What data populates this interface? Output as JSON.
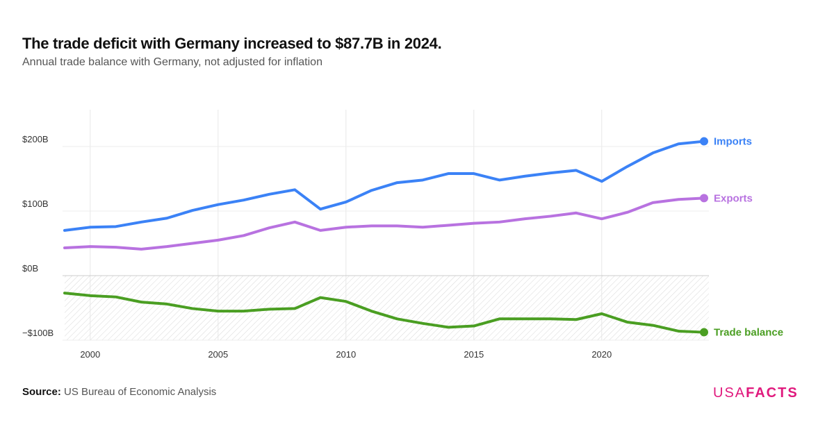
{
  "header": {
    "title": "The trade deficit with Germany increased to $87.7B in 2024.",
    "subtitle": "Annual trade balance with Germany, not adjusted for inflation"
  },
  "footer": {
    "source_label": "Source:",
    "source_text": "US Bureau of Economic Analysis",
    "logo_light": "USA",
    "logo_bold": "FACTS"
  },
  "chart_data": {
    "type": "line",
    "title": "The trade deficit with Germany increased to $87.7B in 2024.",
    "xlim": [
      1999,
      2024
    ],
    "ylim": [
      -100,
      250
    ],
    "x_ticks": [
      2000,
      2005,
      2010,
      2015,
      2020
    ],
    "y_ticks": [
      {
        "value": 200,
        "label": "$200B"
      },
      {
        "value": 100,
        "label": "$100B"
      },
      {
        "value": 0,
        "label": "$0B"
      },
      {
        "value": -100,
        "label": "−$100B"
      }
    ],
    "grid": true,
    "legend": "end-of-line labels",
    "x": [
      1999,
      2000,
      2001,
      2002,
      2003,
      2004,
      2005,
      2006,
      2007,
      2008,
      2009,
      2010,
      2011,
      2012,
      2013,
      2014,
      2015,
      2016,
      2017,
      2018,
      2019,
      2020,
      2021,
      2022,
      2023,
      2024
    ],
    "series": [
      {
        "name": "Imports",
        "color": "#3b82f6",
        "values": [
          70,
          75,
          76,
          83,
          89,
          101,
          110,
          117,
          126,
          133,
          103,
          114,
          132,
          144,
          148,
          158,
          158,
          148,
          154,
          159,
          163,
          146,
          169,
          190,
          204,
          208
        ]
      },
      {
        "name": "Exports",
        "color": "#b872e0",
        "values": [
          43,
          45,
          44,
          41,
          45,
          50,
          55,
          62,
          74,
          83,
          70,
          75,
          77,
          77,
          75,
          78,
          81,
          83,
          88,
          92,
          97,
          88,
          98,
          113,
          118,
          120
        ]
      },
      {
        "name": "Trade balance",
        "color": "#4a9e22",
        "values": [
          -27,
          -31,
          -33,
          -41,
          -44,
          -51,
          -55,
          -55,
          -52,
          -51,
          -34,
          -40,
          -55,
          -67,
          -74,
          -80,
          -78,
          -67,
          -67,
          -67,
          -68,
          -59,
          -72,
          -77,
          -86,
          -87.7
        ]
      }
    ]
  }
}
